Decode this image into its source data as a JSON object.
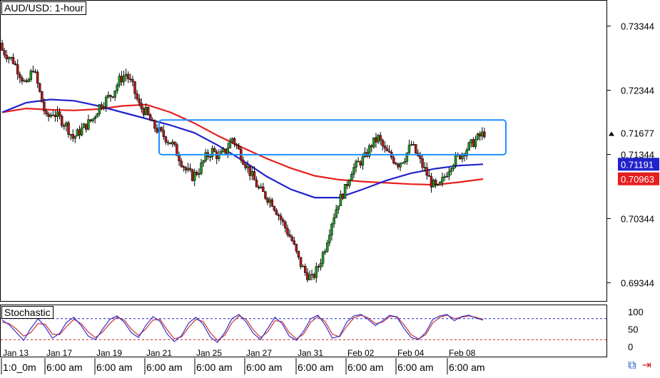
{
  "title": "AUD/USD: 1-hour",
  "indicator_label": "Stochastic",
  "colors": {
    "candle_up": "#1f9a1f",
    "candle_down": "#b01818",
    "ma_fast": "#2222cc",
    "ma_slow": "#e61e1e",
    "box": "#1e90ff",
    "stoch_k": "#3333cc",
    "stoch_d": "#cc3333",
    "stoch_upper": "#2222cc",
    "stoch_lower": "#cc2222"
  },
  "icons": [
    "link-icon",
    "arrow-icon"
  ],
  "chart_data": {
    "type": "candlestick",
    "title": "AUD/USD: 1-hour",
    "y_ticks": [
      0.73344,
      0.72344,
      0.71344,
      0.70344,
      0.69344
    ],
    "ylim": [
      0.6906,
      0.7375
    ],
    "price_labels": [
      {
        "value": 0.71677,
        "text": "0.71677",
        "role": "last-price"
      },
      {
        "value": 0.71191,
        "text": "0.71191",
        "role": "ma-fast"
      },
      {
        "value": 0.70963,
        "text": "0.70963",
        "role": "ma-slow"
      }
    ],
    "x_date_labels": [
      "Jan 13",
      "Jan 17",
      "Jan 19",
      "Jan 21",
      "Jan 25",
      "Jan 27",
      "Jan 31",
      "Feb 02",
      "Feb 04",
      "Feb 08"
    ],
    "x_time_labels": [
      "1:0_0m",
      "6:00 am",
      "6:00 am",
      "6:00 am",
      "6:00 am",
      "6:00 am",
      "6:00 am",
      "6:00 am",
      "6:00 am",
      "6:00 am"
    ],
    "close": [
      0.73,
      0.729,
      0.728,
      0.726,
      0.724,
      0.727,
      0.723,
      0.719,
      0.72,
      0.719,
      0.718,
      0.716,
      0.717,
      0.718,
      0.719,
      0.721,
      0.722,
      0.723,
      0.725,
      0.726,
      0.724,
      0.721,
      0.72,
      0.718,
      0.717,
      0.716,
      0.715,
      0.713,
      0.711,
      0.71,
      0.711,
      0.713,
      0.714,
      0.713,
      0.714,
      0.716,
      0.714,
      0.712,
      0.71,
      0.708,
      0.707,
      0.706,
      0.704,
      0.702,
      0.7,
      0.697,
      0.695,
      0.694,
      0.696,
      0.699,
      0.703,
      0.706,
      0.708,
      0.711,
      0.712,
      0.713,
      0.715,
      0.716,
      0.714,
      0.713,
      0.712,
      0.713,
      0.715,
      0.713,
      0.711,
      0.709,
      0.708,
      0.71,
      0.712,
      0.713,
      0.714,
      0.715,
      0.716,
      0.7168
    ],
    "series": [
      {
        "name": "MA fast",
        "values": [
          0.72,
          0.7215,
          0.722,
          0.7218,
          0.721,
          0.72,
          0.719,
          0.718,
          0.7168,
          0.7148,
          0.7125,
          0.71,
          0.708,
          0.7067,
          0.7067,
          0.708,
          0.7094,
          0.7105,
          0.7112,
          0.7117,
          0.7119
        ]
      },
      {
        "name": "MA slow",
        "values": [
          0.72,
          0.7206,
          0.7204,
          0.7203,
          0.7205,
          0.721,
          0.7212,
          0.72,
          0.7183,
          0.7163,
          0.7145,
          0.7128,
          0.7113,
          0.7101,
          0.7095,
          0.7092,
          0.709,
          0.7088,
          0.7087,
          0.7091,
          0.7096
        ]
      }
    ],
    "stochastic": {
      "y_ticks": [
        100,
        50,
        0
      ],
      "levels": [
        80,
        20
      ],
      "k": [
        76,
        62,
        40,
        18,
        52,
        80,
        56,
        24,
        38,
        70,
        84,
        60,
        30,
        20,
        50,
        78,
        88,
        70,
        40,
        26,
        60,
        86,
        72,
        36,
        14,
        32,
        68,
        84,
        64,
        28,
        12,
        40,
        80,
        92,
        70,
        38,
        20,
        52,
        84,
        66,
        30,
        18,
        44,
        80,
        90,
        62,
        24,
        30,
        70,
        88,
        92,
        78,
        60,
        74,
        90,
        84,
        52,
        26,
        20,
        40,
        78,
        88,
        92,
        74,
        86,
        90,
        82,
        76
      ],
      "d": [
        70,
        66,
        50,
        30,
        40,
        66,
        64,
        36,
        34,
        58,
        78,
        66,
        42,
        26,
        42,
        66,
        84,
        76,
        50,
        32,
        50,
        76,
        78,
        48,
        22,
        28,
        56,
        78,
        72,
        40,
        18,
        32,
        68,
        88,
        78,
        48,
        26,
        42,
        74,
        72,
        40,
        22,
        36,
        70,
        86,
        72,
        36,
        28,
        58,
        82,
        90,
        82,
        66,
        70,
        86,
        86,
        62,
        34,
        22,
        34,
        68,
        84,
        90,
        80,
        84,
        88,
        84,
        78
      ]
    }
  }
}
